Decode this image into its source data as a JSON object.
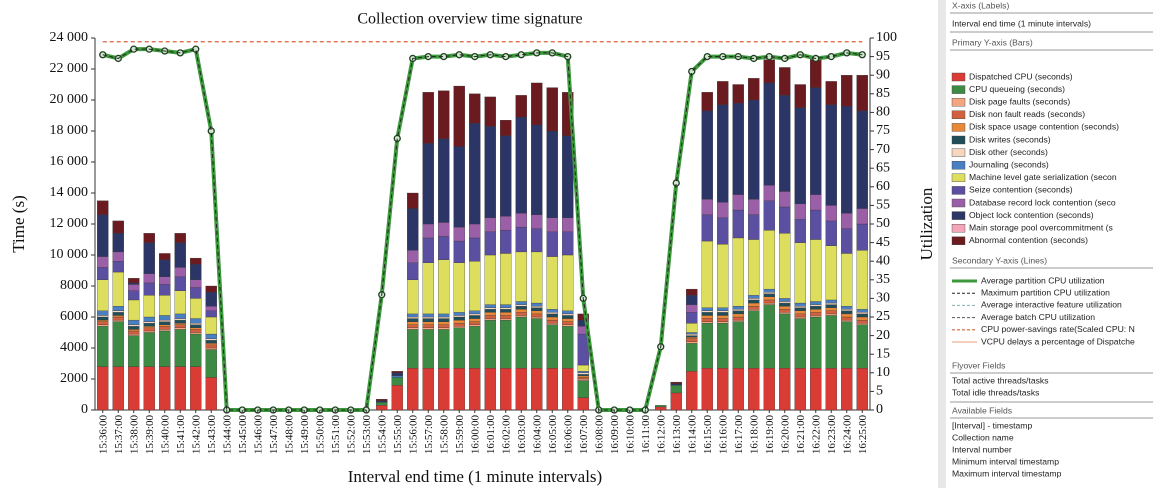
{
  "chart_data": {
    "type": "bar",
    "title": "Collection overview time signature",
    "x_label": "Interval end time (1 minute intervals)",
    "y_label": "Time (s)",
    "y2_label": "Utilization",
    "categories": [
      "15:36:00",
      "15:37:00",
      "15:38:00",
      "15:39:00",
      "15:40:00",
      "15:41:00",
      "15:42:00",
      "15:43:00",
      "15:44:00",
      "15:45:00",
      "15:46:00",
      "15:47:00",
      "15:48:00",
      "15:49:00",
      "15:50:00",
      "15:51:00",
      "15:52:00",
      "15:53:00",
      "15:54:00",
      "15:55:00",
      "15:56:00",
      "15:57:00",
      "15:58:00",
      "15:59:00",
      "16:00:00",
      "16:01:00",
      "16:02:00",
      "16:03:00",
      "16:04:00",
      "16:05:00",
      "16:06:00",
      "16:07:00",
      "16:08:00",
      "16:09:00",
      "16:10:00",
      "16:11:00",
      "16:12:00",
      "16:13:00",
      "16:14:00",
      "16:15:00",
      "16:16:00",
      "16:17:00",
      "16:18:00",
      "16:19:00",
      "16:20:00",
      "16:21:00",
      "16:22:00",
      "16:23:00",
      "16:24:00",
      "16:25:00"
    ],
    "ylim": [
      0,
      24000
    ],
    "yticks": [
      0,
      2000,
      4000,
      6000,
      8000,
      {
        "value": 10000,
        "label": "10 000"
      },
      {
        "value": 12000,
        "label": "12 000"
      },
      {
        "value": 14000,
        "label": "14 000"
      },
      {
        "value": 16000,
        "label": "16 000"
      },
      {
        "value": 18000,
        "label": "18 000"
      },
      {
        "value": 20000,
        "label": "20 000"
      },
      {
        "value": 22000,
        "label": "22 000"
      },
      {
        "value": 24000,
        "label": "24 000"
      }
    ],
    "y2lim": [
      0,
      100
    ],
    "y2ticks": [
      0,
      5,
      10,
      15,
      20,
      25,
      30,
      35,
      40,
      45,
      50,
      55,
      60,
      65,
      70,
      75,
      80,
      85,
      90,
      95,
      100
    ],
    "grid": false,
    "stacked": true,
    "series": [
      {
        "name": "Dispatched CPU (seconds)",
        "color": "#d93b35",
        "values": [
          2800,
          2800,
          2800,
          2800,
          2800,
          2800,
          2800,
          2100,
          0,
          0,
          0,
          0,
          0,
          0,
          0,
          0,
          0,
          0,
          300,
          1600,
          2700,
          2700,
          2700,
          2700,
          2700,
          2700,
          2700,
          2700,
          2700,
          2700,
          2700,
          800,
          0,
          0,
          0,
          0,
          200,
          1100,
          2500,
          2700,
          2700,
          2700,
          2700,
          2700,
          2700,
          2700,
          2700,
          2700,
          2700,
          2700
        ]
      },
      {
        "name": "CPU queueing (seconds)",
        "color": "#3d8a45",
        "values": [
          2600,
          2900,
          2000,
          2200,
          2300,
          2400,
          2100,
          1800,
          0,
          0,
          0,
          0,
          0,
          0,
          0,
          0,
          0,
          0,
          200,
          500,
          2500,
          2500,
          2500,
          2600,
          2700,
          3100,
          3100,
          3300,
          3200,
          2800,
          2700,
          1100,
          0,
          0,
          0,
          0,
          100,
          500,
          1800,
          2900,
          2900,
          3000,
          3700,
          4100,
          3500,
          3200,
          3300,
          3400,
          3000,
          2800
        ]
      },
      {
        "name": "Disk page faults (seconds)",
        "color": "#f4a582",
        "values": [
          100,
          100,
          100,
          100,
          100,
          100,
          100,
          100,
          0,
          0,
          0,
          0,
          0,
          0,
          0,
          0,
          0,
          0,
          0,
          0,
          100,
          100,
          100,
          100,
          100,
          100,
          100,
          100,
          100,
          100,
          100,
          100,
          0,
          0,
          0,
          0,
          0,
          0,
          100,
          100,
          100,
          100,
          100,
          100,
          100,
          100,
          100,
          100,
          100,
          100
        ]
      },
      {
        "name": "Disk non fault reads (seconds)",
        "color": "#d0603e",
        "values": [
          200,
          200,
          200,
          200,
          200,
          200,
          200,
          200,
          0,
          0,
          0,
          0,
          0,
          0,
          0,
          0,
          0,
          0,
          0,
          0,
          200,
          200,
          200,
          200,
          200,
          200,
          200,
          200,
          200,
          200,
          200,
          100,
          0,
          0,
          0,
          0,
          0,
          0,
          200,
          200,
          200,
          200,
          200,
          200,
          200,
          200,
          200,
          200,
          200,
          200
        ]
      },
      {
        "name": "Disk space usage contention (seconds)",
        "color": "#e8893a",
        "values": [
          100,
          100,
          100,
          100,
          100,
          100,
          100,
          100,
          0,
          0,
          0,
          0,
          0,
          0,
          0,
          0,
          0,
          0,
          0,
          0,
          200,
          200,
          200,
          200,
          200,
          200,
          200,
          200,
          200,
          200,
          200,
          100,
          0,
          0,
          0,
          0,
          0,
          0,
          100,
          200,
          200,
          200,
          200,
          200,
          200,
          200,
          200,
          200,
          200,
          200
        ]
      },
      {
        "name": "Disk writes (seconds)",
        "color": "#1f4e5a",
        "values": [
          200,
          200,
          200,
          200,
          200,
          200,
          200,
          200,
          0,
          0,
          0,
          0,
          0,
          0,
          0,
          0,
          0,
          0,
          0,
          0,
          200,
          200,
          200,
          200,
          200,
          200,
          200,
          200,
          200,
          200,
          200,
          100,
          0,
          0,
          0,
          0,
          0,
          0,
          100,
          200,
          200,
          200,
          200,
          200,
          200,
          200,
          200,
          200,
          200,
          200
        ]
      },
      {
        "name": "Disk other (seconds)",
        "color": "#f7d6c0",
        "values": [
          100,
          100,
          100,
          100,
          100,
          100,
          100,
          100,
          0,
          0,
          0,
          0,
          0,
          0,
          0,
          0,
          0,
          0,
          0,
          0,
          100,
          100,
          100,
          100,
          100,
          100,
          100,
          100,
          100,
          100,
          100,
          100,
          0,
          0,
          0,
          0,
          0,
          0,
          100,
          100,
          100,
          100,
          100,
          100,
          100,
          100,
          100,
          100,
          100,
          100
        ]
      },
      {
        "name": "Journaling (seconds)",
        "color": "#4a7fc1",
        "values": [
          300,
          300,
          300,
          300,
          300,
          300,
          300,
          300,
          0,
          0,
          0,
          0,
          0,
          0,
          0,
          0,
          0,
          0,
          0,
          100,
          200,
          200,
          200,
          200,
          200,
          200,
          200,
          200,
          200,
          200,
          200,
          100,
          0,
          0,
          0,
          0,
          0,
          0,
          100,
          200,
          200,
          200,
          200,
          200,
          200,
          200,
          200,
          200,
          200,
          200
        ]
      },
      {
        "name": "Machine level gate serialization (secon",
        "color": "#dede5e",
        "values": [
          2000,
          2200,
          1300,
          1400,
          1300,
          1500,
          1300,
          1100,
          0,
          0,
          0,
          0,
          0,
          0,
          0,
          0,
          0,
          0,
          0,
          0,
          2200,
          3300,
          3500,
          3200,
          3200,
          3200,
          3300,
          3200,
          3300,
          3400,
          3600,
          400,
          0,
          0,
          0,
          0,
          0,
          0,
          600,
          4300,
          4100,
          4400,
          3600,
          3800,
          4200,
          3900,
          4000,
          3500,
          3400,
          3800
        ]
      },
      {
        "name": "Seize contention (seconds)",
        "color": "#5a4fa0",
        "values": [
          800,
          700,
          600,
          800,
          700,
          900,
          700,
          400,
          0,
          0,
          0,
          0,
          0,
          0,
          0,
          0,
          0,
          0,
          0,
          0,
          1100,
          1600,
          1500,
          1400,
          1500,
          1500,
          1500,
          1600,
          1500,
          1600,
          1500,
          2000,
          0,
          0,
          0,
          0,
          0,
          0,
          700,
          1700,
          1700,
          1800,
          1600,
          1900,
          1700,
          1500,
          1900,
          1600,
          1600,
          1700
        ]
      },
      {
        "name": "Database record lock contention (seco",
        "color": "#9b5fa8",
        "values": [
          700,
          600,
          400,
          600,
          500,
          600,
          500,
          300,
          0,
          0,
          0,
          0,
          0,
          0,
          0,
          0,
          0,
          0,
          0,
          0,
          800,
          900,
          900,
          900,
          900,
          900,
          900,
          900,
          900,
          900,
          900,
          500,
          0,
          0,
          0,
          0,
          0,
          0,
          500,
          1000,
          1000,
          1000,
          1000,
          1000,
          1000,
          1000,
          1000,
          1000,
          1000,
          1000
        ]
      },
      {
        "name": "Object lock contention (seconds)",
        "color": "#2b3566",
        "values": [
          2700,
          1200,
          100,
          2000,
          1100,
          1600,
          1000,
          900,
          0,
          0,
          0,
          0,
          0,
          0,
          0,
          0,
          0,
          0,
          100,
          200,
          2700,
          5200,
          5400,
          5200,
          6500,
          5900,
          5200,
          6200,
          5800,
          5600,
          5300,
          400,
          0,
          0,
          0,
          0,
          0,
          100,
          600,
          5700,
          6300,
          5900,
          6400,
          6600,
          6200,
          6200,
          6900,
          6500,
          6900,
          6300
        ]
      },
      {
        "name": "Main storage pool overcommitment (s",
        "color": "#f2a6b8",
        "values": [
          0,
          0,
          0,
          0,
          0,
          0,
          0,
          0,
          0,
          0,
          0,
          0,
          0,
          0,
          0,
          0,
          0,
          0,
          0,
          0,
          0,
          0,
          0,
          0,
          0,
          0,
          0,
          0,
          0,
          0,
          0,
          0,
          0,
          0,
          0,
          0,
          0,
          0,
          0,
          0,
          0,
          0,
          0,
          0,
          0,
          0,
          0,
          0,
          0,
          0
        ]
      },
      {
        "name": "Abnormal contention (seconds)",
        "color": "#6b1a1f",
        "values": [
          900,
          800,
          300,
          600,
          400,
          600,
          400,
          400,
          0,
          0,
          0,
          0,
          0,
          0,
          0,
          0,
          0,
          0,
          100,
          100,
          1000,
          3300,
          3100,
          3900,
          1900,
          1900,
          1000,
          1400,
          2700,
          2800,
          2800,
          400,
          0,
          0,
          0,
          0,
          0,
          100,
          400,
          1200,
          1500,
          1200,
          1400,
          1500,
          1800,
          1500,
          1900,
          1500,
          2000,
          2300
        ]
      },
      {
        "name": "Average partition CPU utilization",
        "type": "line",
        "axis": "y2",
        "color": "#3c9a3c",
        "width": 4,
        "markers": true,
        "values": [
          95.5,
          94.5,
          97,
          97,
          96.5,
          96,
          97,
          75,
          0,
          0,
          0,
          0,
          0,
          0,
          0,
          0,
          0,
          0,
          31,
          73,
          94.5,
          95,
          95,
          95.5,
          95,
          95.5,
          95,
          95.5,
          96,
          96,
          95,
          30,
          0,
          0,
          0,
          0,
          17,
          61,
          91,
          95,
          95,
          95,
          94.5,
          95,
          94.5,
          95.5,
          94.5,
          95,
          96,
          95.5
        ]
      },
      {
        "name": "Maximum partition CPU utilization",
        "type": "line",
        "axis": "y2",
        "color": "#222222",
        "width": 1,
        "dash": true,
        "values": [
          95.5,
          94.5,
          97,
          97,
          96.5,
          96,
          97,
          75,
          0,
          0,
          0,
          0,
          0,
          0,
          0,
          0,
          0,
          0,
          31,
          73,
          94.5,
          95,
          95,
          95.5,
          95,
          95.5,
          95,
          95.5,
          96,
          96,
          95,
          30,
          0,
          0,
          0,
          0,
          17,
          61,
          91,
          95,
          95,
          95,
          94.5,
          95,
          94.5,
          95.5,
          94.5,
          95,
          96,
          95.5
        ]
      },
      {
        "name": "CPU power-savings rate(Scaled CPU: N",
        "type": "line",
        "axis": "y2",
        "color": "#d9603b",
        "width": 1.2,
        "dash": true,
        "values": [
          99,
          99,
          99,
          99,
          99,
          99,
          99,
          99,
          99,
          99,
          99,
          99,
          99,
          99,
          99,
          99,
          99,
          99,
          99,
          99,
          99,
          99,
          99,
          99,
          99,
          99,
          99,
          99,
          99,
          99,
          99,
          99,
          99,
          99,
          99,
          99,
          99,
          99,
          99,
          99,
          99,
          99,
          99,
          99,
          99,
          99,
          99,
          99,
          99,
          99
        ]
      }
    ]
  },
  "panel": {
    "x_header": "X-axis (Labels)",
    "x_field": "Interval end time (1 minute intervals)",
    "bars_header": "Primary Y-axis (Bars)",
    "lines_header": "Secondary Y-axis (Lines)",
    "lines_extra": [
      "Average interactive feature utilization",
      "Average batch CPU utilization",
      "VCPU delays a percentage of Dispatche"
    ],
    "flyover_header": "Flyover Fields",
    "flyover": [
      "Total active threads/tasks",
      "Total idle threads/tasks"
    ],
    "available_header": "Available Fields",
    "available": [
      "[Interval] - timestamp",
      "Collection name",
      "Interval number",
      "Minimum interval timestamp",
      "Maximum interval timestamp"
    ]
  }
}
